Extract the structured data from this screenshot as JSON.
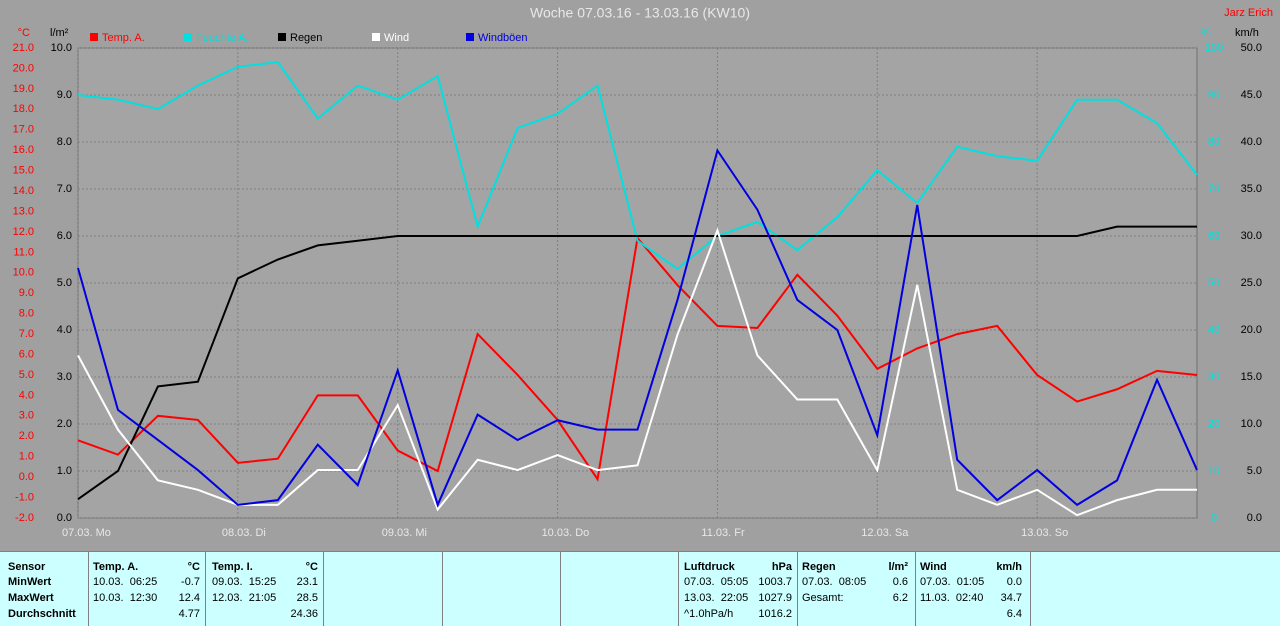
{
  "chart_data": {
    "type": "line",
    "title": "Woche 07.03.16 - 13.03.16 (KW10)",
    "author": "Jarz Erich",
    "y_unit": "°C",
    "y2_unit": "%",
    "y3_unit": "l/m²",
    "y4_unit": "km/h",
    "x": [
      0,
      0.25,
      0.5,
      0.75,
      1,
      1.25,
      1.5,
      1.75,
      2,
      2.25,
      2.5,
      2.75,
      3,
      3.25,
      3.5,
      3.75,
      4,
      4.25,
      4.5,
      4.75,
      5,
      5.25,
      5.5,
      5.75,
      6,
      6.25,
      6.5,
      6.75,
      7
    ],
    "xlim": [
      0,
      7
    ],
    "xticks": [
      {
        "value": 0,
        "label": "07.03. Mo"
      },
      {
        "value": 1,
        "label": "08.03. Di"
      },
      {
        "value": 2,
        "label": "09.03. Mi"
      },
      {
        "value": 3,
        "label": "10.03. Do"
      },
      {
        "value": 4,
        "label": "11.03. Fr"
      },
      {
        "value": 5,
        "label": "12.03. Sa"
      },
      {
        "value": 6,
        "label": "13.03. So"
      }
    ],
    "ylim": [
      -2,
      21
    ],
    "yticks": [
      {
        "value": -2,
        "label": "-2.0"
      },
      {
        "value": -1,
        "label": "-1.0"
      },
      {
        "value": 0,
        "label": "0.0"
      },
      {
        "value": 1,
        "label": "1.0"
      },
      {
        "value": 2,
        "label": "2.0"
      },
      {
        "value": 3,
        "label": "3.0"
      },
      {
        "value": 4,
        "label": "4.0"
      },
      {
        "value": 5,
        "label": "5.0"
      },
      {
        "value": 6,
        "label": "6.0"
      },
      {
        "value": 7,
        "label": "7.0"
      },
      {
        "value": 8,
        "label": "8.0"
      },
      {
        "value": 9,
        "label": "9.0"
      },
      {
        "value": 10,
        "label": "10.0"
      },
      {
        "value": 11,
        "label": "11.0"
      },
      {
        "value": 12,
        "label": "12.0"
      },
      {
        "value": 13,
        "label": "13.0"
      },
      {
        "value": 14,
        "label": "14.0"
      },
      {
        "value": 15,
        "label": "15.0"
      },
      {
        "value": 16,
        "label": "16.0"
      },
      {
        "value": 17,
        "label": "17.0"
      },
      {
        "value": 18,
        "label": "18.0"
      },
      {
        "value": 19,
        "label": "19.0"
      },
      {
        "value": 20,
        "label": "20.0"
      },
      {
        "value": 21,
        "label": "21.0"
      }
    ],
    "y2lim": [
      0,
      100
    ],
    "y2ticks": [
      0,
      10,
      20,
      30,
      40,
      50,
      60,
      70,
      80,
      90,
      100
    ],
    "y3lim": [
      0,
      10
    ],
    "y3ticks": [
      {
        "value": 0,
        "label": "0.0"
      },
      {
        "value": 1,
        "label": "1.0"
      },
      {
        "value": 2,
        "label": "2.0"
      },
      {
        "value": 3,
        "label": "3.0"
      },
      {
        "value": 4,
        "label": "4.0"
      },
      {
        "value": 5,
        "label": "5.0"
      },
      {
        "value": 6,
        "label": "6.0"
      },
      {
        "value": 7,
        "label": "7.0"
      },
      {
        "value": 8,
        "label": "8.0"
      },
      {
        "value": 9,
        "label": "9.0"
      },
      {
        "value": 10,
        "label": "10.0"
      }
    ],
    "y4lim": [
      0,
      50
    ],
    "y4ticks": [
      {
        "value": 0,
        "label": "0.0"
      },
      {
        "value": 5,
        "label": "5.0"
      },
      {
        "value": 10,
        "label": "10.0"
      },
      {
        "value": 15,
        "label": "15.0"
      },
      {
        "value": 20,
        "label": "20.0"
      },
      {
        "value": 25,
        "label": "25.0"
      },
      {
        "value": 30,
        "label": "30.0"
      },
      {
        "value": 35,
        "label": "35.0"
      },
      {
        "value": 40,
        "label": "40.0"
      },
      {
        "value": 45,
        "label": "45.0"
      },
      {
        "value": 50,
        "label": "50.0"
      }
    ],
    "grid": true,
    "series": [
      {
        "name": "Temp. A.",
        "color": "#ff0000",
        "axis": "y",
        "values": [
          1.8,
          1.1,
          3.0,
          2.8,
          0.7,
          0.9,
          4.0,
          4.0,
          1.3,
          0.3,
          7.0,
          5.0,
          2.8,
          -0.1,
          11.7,
          9.4,
          7.4,
          7.3,
          9.9,
          7.9,
          5.3,
          6.3,
          7.0,
          7.4,
          5.0,
          3.7,
          4.3,
          5.2,
          5.0
        ]
      },
      {
        "name": "Feuchte A.",
        "color": "#00e0e0",
        "axis": "y2",
        "values": [
          90,
          89,
          87,
          92,
          96,
          97,
          85,
          92,
          89,
          94,
          62,
          83,
          86,
          92,
          59,
          53,
          60,
          63,
          57,
          64,
          74,
          67,
          79,
          77,
          76,
          89,
          89,
          84,
          73
        ]
      },
      {
        "name": "Regen",
        "color": "#000000",
        "axis": "y3",
        "values": [
          0.4,
          1.0,
          2.8,
          2.9,
          5.1,
          5.5,
          5.8,
          5.9,
          6.0,
          6.0,
          6.0,
          6.0,
          6.0,
          6.0,
          6.0,
          6.0,
          6.0,
          6.0,
          6.0,
          6.0,
          6.0,
          6.0,
          6.0,
          6.0,
          6.0,
          6.0,
          6.2,
          6.2,
          6.2
        ]
      },
      {
        "name": "Wind",
        "color": "#ffffff",
        "axis": "y4",
        "values": [
          17.3,
          9.4,
          4.0,
          3.0,
          1.4,
          1.4,
          5.1,
          5.1,
          12.0,
          0.9,
          6.2,
          5.1,
          6.7,
          5.1,
          5.6,
          19.5,
          30.6,
          17.3,
          12.6,
          12.6,
          5.1,
          24.8,
          3.0,
          1.4,
          3.0,
          0.3,
          1.9,
          3.0,
          3.0
        ]
      },
      {
        "name": "Windböen",
        "color": "#0000e0",
        "axis": "y4",
        "values": [
          26.6,
          11.5,
          8.3,
          5.1,
          1.4,
          1.9,
          7.8,
          3.5,
          15.7,
          1.4,
          11.0,
          8.3,
          10.4,
          9.4,
          9.4,
          23.2,
          39.1,
          32.8,
          23.2,
          20.0,
          8.8,
          33.3,
          6.2,
          1.9,
          5.1,
          1.4,
          4.0,
          14.7,
          5.1
        ]
      }
    ]
  },
  "table": {
    "sensor": {
      "header": "Sensor",
      "rows": [
        "MinWert",
        "MaxWert",
        "Durchschnitt"
      ]
    },
    "columns": [
      {
        "name": "Temp. A.",
        "unit": "°C",
        "min": {
          "time": "10.03.  06:25",
          "value": "-0.7"
        },
        "max": {
          "time": "10.03.  12:30",
          "value": "12.4"
        },
        "avg": {
          "value": "4.77"
        }
      },
      {
        "name": "Temp. I.",
        "unit": "°C",
        "min": {
          "time": "09.03.  15:25",
          "value": "23.1"
        },
        "max": {
          "time": "12.03.  21:05",
          "value": "28.5"
        },
        "avg": {
          "value": "24.36"
        }
      },
      {
        "name": "Luftdruck",
        "unit": "hPa",
        "min": {
          "time": "07.03.  05:05",
          "value": "1003.7"
        },
        "max": {
          "time": "13.03.  22:05",
          "value": "1027.9"
        },
        "avg": {
          "time": "^1.0hPa/h",
          "value": "1016.2"
        }
      },
      {
        "name": "Regen",
        "unit": "l/m²",
        "min": {
          "time": "07.03.  08:05",
          "value": "0.6"
        },
        "max": {
          "time": "Gesamt:",
          "value": "6.2"
        }
      },
      {
        "name": "Wind",
        "unit": "km/h",
        "min": {
          "time": "07.03.  01:05",
          "value": "0.0"
        },
        "max": {
          "time": "11.03.  02:40",
          "value": "34.7"
        },
        "avg": {
          "value": "6.4"
        }
      }
    ]
  }
}
